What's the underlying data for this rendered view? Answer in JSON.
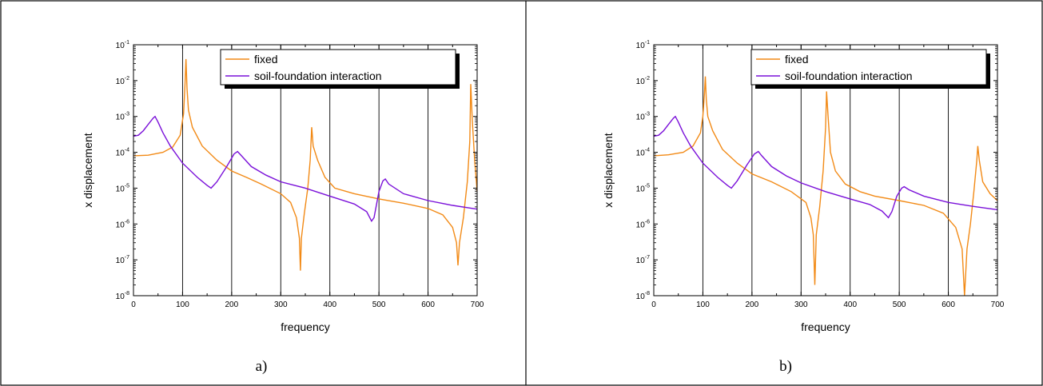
{
  "captions": [
    "a)",
    "b)"
  ],
  "chart_data": [
    {
      "type": "line",
      "xlabel": "frequency",
      "ylabel": "x displacement",
      "xlim": [
        0,
        700
      ],
      "ylim": [
        1e-08,
        0.1
      ],
      "yscale": "log",
      "xticks": [
        0,
        100,
        200,
        300,
        400,
        500,
        600,
        700
      ],
      "yticks": [
        "10-8",
        "10-7",
        "10-6",
        "10-5",
        "10-4",
        "10-3",
        "10-2",
        "10-1"
      ],
      "grid": "vertical lines at 100, 200, 300, 400, 500, 600",
      "legend": "top-right",
      "series": [
        {
          "name": "fixed",
          "color": "#f28a16",
          "points": [
            [
              0,
              8e-05
            ],
            [
              30,
              8.3e-05
            ],
            [
              60,
              0.0001
            ],
            [
              80,
              0.00014
            ],
            [
              95,
              0.0003
            ],
            [
              102,
              0.0012
            ],
            [
              105,
              0.008
            ],
            [
              107,
              0.04
            ],
            [
              109,
              0.006
            ],
            [
              112,
              0.0015
            ],
            [
              120,
              0.0005
            ],
            [
              140,
              0.00015
            ],
            [
              170,
              6e-05
            ],
            [
              200,
              3e-05
            ],
            [
              230,
              2e-05
            ],
            [
              260,
              1.3e-05
            ],
            [
              300,
              7e-06
            ],
            [
              320,
              4e-06
            ],
            [
              332,
              1.5e-06
            ],
            [
              338,
              4e-07
            ],
            [
              340,
              5e-08
            ],
            [
              342,
              4e-07
            ],
            [
              348,
              2e-06
            ],
            [
              355,
              1e-05
            ],
            [
              360,
              6e-05
            ],
            [
              363,
              0.0005
            ],
            [
              366,
              0.00015
            ],
            [
              375,
              6e-05
            ],
            [
              390,
              2e-05
            ],
            [
              410,
              1e-05
            ],
            [
              450,
              7e-06
            ],
            [
              500,
              5e-06
            ],
            [
              550,
              3.8e-06
            ],
            [
              600,
              2.7e-06
            ],
            [
              630,
              1.8e-06
            ],
            [
              650,
              8e-07
            ],
            [
              658,
              3e-07
            ],
            [
              661,
              7e-08
            ],
            [
              664,
              3e-07
            ],
            [
              672,
              1.5e-06
            ],
            [
              680,
              1.5e-05
            ],
            [
              685,
              0.0002
            ],
            [
              687,
              0.008
            ],
            [
              690,
              0.0008
            ],
            [
              695,
              6e-05
            ],
            [
              700,
              8e-06
            ]
          ]
        },
        {
          "name": "soil-foundation interaction",
          "color": "#7a10d9",
          "points": [
            [
              0,
              0.00028
            ],
            [
              10,
              0.0003
            ],
            [
              20,
              0.0004
            ],
            [
              30,
              0.0006
            ],
            [
              40,
              0.0009
            ],
            [
              44,
              0.001
            ],
            [
              50,
              0.0007
            ],
            [
              60,
              0.00035
            ],
            [
              75,
              0.00015
            ],
            [
              100,
              5e-05
            ],
            [
              130,
              2e-05
            ],
            [
              150,
              1.2e-05
            ],
            [
              158,
              1e-05
            ],
            [
              170,
              1.5e-05
            ],
            [
              190,
              4e-05
            ],
            [
              205,
              9e-05
            ],
            [
              212,
              0.000105
            ],
            [
              220,
              8e-05
            ],
            [
              240,
              4e-05
            ],
            [
              270,
              2.3e-05
            ],
            [
              300,
              1.5e-05
            ],
            [
              350,
              1e-05
            ],
            [
              400,
              6e-06
            ],
            [
              450,
              3.6e-06
            ],
            [
              475,
              2.2e-06
            ],
            [
              485,
              1.2e-06
            ],
            [
              490,
              1.5e-06
            ],
            [
              500,
              8e-06
            ],
            [
              508,
              1.6e-05
            ],
            [
              513,
              1.8e-05
            ],
            [
              520,
              1.3e-05
            ],
            [
              550,
              7e-06
            ],
            [
              600,
              4.5e-06
            ],
            [
              650,
              3.3e-06
            ],
            [
              700,
              2.6e-06
            ]
          ]
        }
      ]
    },
    {
      "type": "line",
      "xlabel": "frequency",
      "ylabel": "x displacement",
      "xlim": [
        0,
        700
      ],
      "ylim": [
        1e-08,
        0.1
      ],
      "yscale": "log",
      "xticks": [
        0,
        100,
        200,
        300,
        400,
        500,
        600,
        700
      ],
      "yticks": [
        "10-8",
        "10-7",
        "10-6",
        "10-5",
        "10-4",
        "10-3",
        "10-2",
        "10-1"
      ],
      "grid": "vertical lines at 100, 200, 300, 400, 500, 600",
      "legend": "top-right",
      "series": [
        {
          "name": "fixed",
          "color": "#f28a16",
          "points": [
            [
              0,
              8e-05
            ],
            [
              30,
              8.5e-05
            ],
            [
              60,
              0.0001
            ],
            [
              80,
              0.00015
            ],
            [
              95,
              0.00035
            ],
            [
              100,
              0.001
            ],
            [
              103,
              0.004
            ],
            [
              105,
              0.013
            ],
            [
              107,
              0.003
            ],
            [
              110,
              0.001
            ],
            [
              120,
              0.0004
            ],
            [
              140,
              0.00012
            ],
            [
              170,
              5e-05
            ],
            [
              200,
              2.5e-05
            ],
            [
              240,
              1.5e-05
            ],
            [
              280,
              8e-06
            ],
            [
              310,
              4e-06
            ],
            [
              320,
              1.5e-06
            ],
            [
              325,
              5e-07
            ],
            [
              328,
              2e-08
            ],
            [
              331,
              5e-07
            ],
            [
              338,
              3e-06
            ],
            [
              345,
              3e-05
            ],
            [
              350,
              0.0005
            ],
            [
              352,
              0.005
            ],
            [
              355,
              0.001
            ],
            [
              360,
              0.0001
            ],
            [
              370,
              3e-05
            ],
            [
              390,
              1.3e-05
            ],
            [
              420,
              8e-06
            ],
            [
              450,
              6e-06
            ],
            [
              500,
              4.5e-06
            ],
            [
              550,
              3.3e-06
            ],
            [
              590,
              2e-06
            ],
            [
              615,
              8e-07
            ],
            [
              628,
              2e-07
            ],
            [
              633,
              1e-08
            ],
            [
              638,
              2e-07
            ],
            [
              645,
              1e-06
            ],
            [
              652,
              8e-06
            ],
            [
              658,
              6e-05
            ],
            [
              660,
              0.00015
            ],
            [
              663,
              6e-05
            ],
            [
              670,
              1.5e-05
            ],
            [
              685,
              7e-06
            ],
            [
              700,
              4.5e-06
            ]
          ]
        },
        {
          "name": "soil-foundation interaction",
          "color": "#7a10d9",
          "points": [
            [
              0,
              0.00028
            ],
            [
              10,
              0.0003
            ],
            [
              20,
              0.0004
            ],
            [
              30,
              0.0006
            ],
            [
              40,
              0.0009
            ],
            [
              44,
              0.001
            ],
            [
              50,
              0.0007
            ],
            [
              60,
              0.00035
            ],
            [
              75,
              0.00015
            ],
            [
              100,
              5e-05
            ],
            [
              130,
              2e-05
            ],
            [
              150,
              1.2e-05
            ],
            [
              158,
              1e-05
            ],
            [
              170,
              1.6e-05
            ],
            [
              190,
              4.5e-05
            ],
            [
              205,
              9e-05
            ],
            [
              213,
              0.000105
            ],
            [
              220,
              8e-05
            ],
            [
              240,
              4e-05
            ],
            [
              270,
              2.2e-05
            ],
            [
              300,
              1.4e-05
            ],
            [
              350,
              8e-06
            ],
            [
              400,
              5e-06
            ],
            [
              440,
              3.5e-06
            ],
            [
              465,
              2.3e-06
            ],
            [
              478,
              1.5e-06
            ],
            [
              485,
              2.2e-06
            ],
            [
              495,
              6e-06
            ],
            [
              505,
              1e-05
            ],
            [
              510,
              1.1e-05
            ],
            [
              520,
              9e-06
            ],
            [
              550,
              6e-06
            ],
            [
              600,
              4e-06
            ],
            [
              650,
              3.1e-06
            ],
            [
              700,
              2.5e-06
            ]
          ]
        }
      ]
    }
  ]
}
